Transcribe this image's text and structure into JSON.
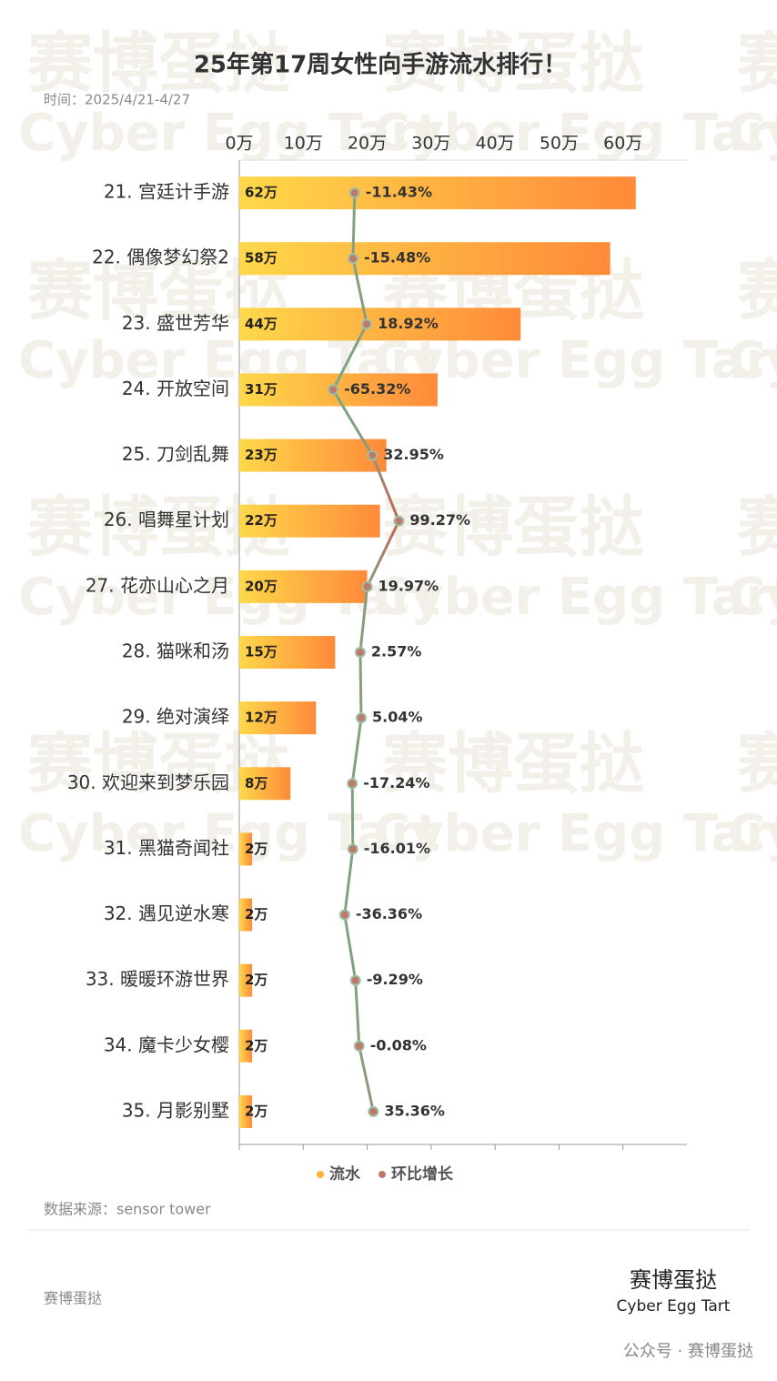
{
  "chart_data": {
    "type": "bar",
    "title": "25年第17周女性向手游流水排行！",
    "subtitle": "时间：2025/4/21-4/27",
    "categories": [
      "21. 宫廷计手游",
      "22. 偶像梦幻祭2",
      "23. 盛世芳华",
      "24. 开放空间",
      "25. 刀剑乱舞",
      "26. 唱舞星计划",
      "27. 花亦山心之月",
      "28. 猫咪和汤",
      "29. 绝对演绎",
      "30. 欢迎来到梦乐园",
      "31. 黑猫奇闻社",
      "32. 遇见逆水寒",
      "33. 暖暖环游世界",
      "34. 魔卡少女樱",
      "35. 月影别墅"
    ],
    "series": [
      {
        "name": "流水",
        "color": "#ffb234",
        "values": [
          62,
          58,
          44,
          31,
          23,
          22,
          20,
          15,
          12,
          8,
          2,
          2,
          2,
          2,
          2
        ],
        "value_labels": [
          "62万",
          "58万",
          "44万",
          "31万",
          "23万",
          "22万",
          "20万",
          "15万",
          "12万",
          "8万",
          "2万",
          "2万",
          "2万",
          "2万",
          "2万"
        ]
      },
      {
        "name": "环比增长",
        "color": "#c0786a",
        "type": "line",
        "axis": "x2",
        "values": [
          -11.43,
          -15.48,
          18.92,
          -65.32,
          32.95,
          99.27,
          19.97,
          2.57,
          5.04,
          -17.24,
          -16.01,
          -36.36,
          -9.29,
          -0.08,
          35.36
        ],
        "value_labels": [
          "-11.43%",
          "-15.48%",
          "18.92%",
          "-65.32%",
          "32.95%",
          "99.27%",
          "19.97%",
          "2.57%",
          "5.04%",
          "-17.24%",
          "-16.01%",
          "-36.36%",
          "-9.29%",
          "-0.08%",
          "35.36%"
        ]
      }
    ],
    "xlim": [
      0,
      70
    ],
    "xticks": [
      {
        "value": 0,
        "label": "0万"
      },
      {
        "value": 10,
        "label": "10万"
      },
      {
        "value": 20,
        "label": "20万"
      },
      {
        "value": 30,
        "label": "30万"
      },
      {
        "value": 40,
        "label": "40万"
      },
      {
        "value": 50,
        "label": "50万"
      },
      {
        "value": 60,
        "label": "60万"
      }
    ],
    "x2lim": [
      -300,
      820
    ],
    "source": "数据来源：sensor tower"
  },
  "footer": {
    "left": "赛博蛋挞",
    "logo_zh": "赛博蛋挞",
    "logo_en": "Cyber Egg Tart",
    "wechat": "公众号 · 赛博蛋挞"
  },
  "watermark": {
    "zh": "赛博蛋挞",
    "en": "Cyber Egg Tart"
  }
}
